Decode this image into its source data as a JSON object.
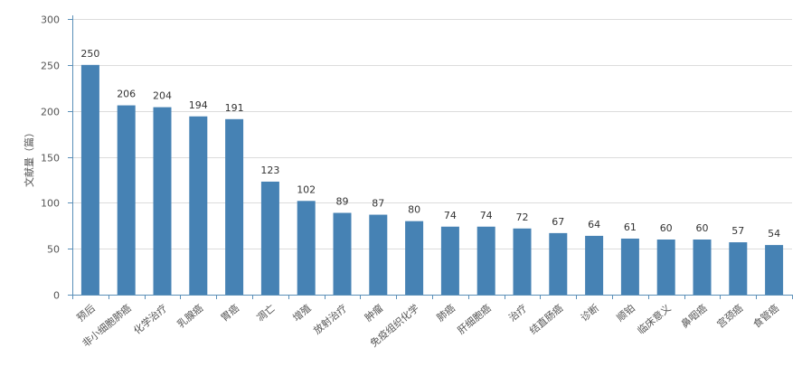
{
  "chart_data": {
    "type": "bar",
    "ylabel": "文献量（篇）",
    "xlabel": "",
    "ylim": [
      0,
      300
    ],
    "yticks": [
      0,
      50,
      100,
      150,
      200,
      250,
      300
    ],
    "categories": [
      "预后",
      "非小细胞肺癌",
      "化学治疗",
      "乳腺癌",
      "胃癌",
      "凋亡",
      "增殖",
      "放射治疗",
      "肿瘤",
      "免疫组织化学",
      "肺癌",
      "肝细胞癌",
      "治疗",
      "结直肠癌",
      "诊断",
      "顺铂",
      "临床意义",
      "鼻咽癌",
      "宫颈癌",
      "食管癌"
    ],
    "values": [
      250,
      206,
      204,
      194,
      191,
      123,
      102,
      89,
      87,
      80,
      74,
      74,
      72,
      67,
      64,
      61,
      60,
      60,
      57,
      54
    ],
    "colors": {
      "bar": "#4682b4",
      "axis": "#5a8fb8",
      "grid": "#dcdcdc"
    },
    "grid": true
  }
}
